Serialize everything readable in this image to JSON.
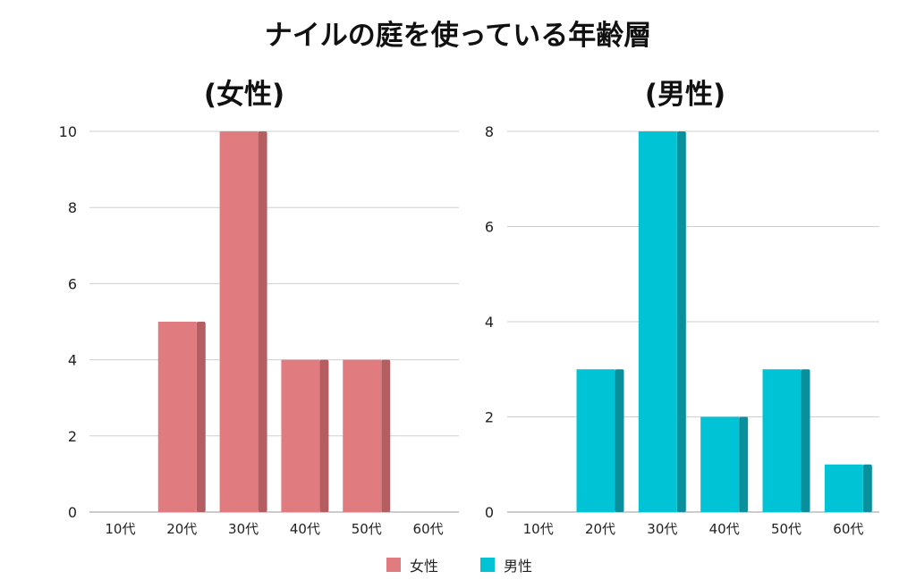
{
  "title": "ナイルの庭を使っている年齢層",
  "legend": {
    "placement": "bottom-center",
    "items": [
      {
        "label": "女性",
        "color": "#e07c80"
      },
      {
        "label": "男性",
        "color": "#00c4d6"
      }
    ]
  },
  "chart_data": [
    {
      "type": "bar",
      "title": "(女性)",
      "categories": [
        "10代",
        "20代",
        "30代",
        "40代",
        "50代",
        "60代"
      ],
      "series": [
        {
          "name": "女性",
          "values": [
            0,
            5,
            10,
            4,
            4,
            0
          ],
          "color": "#e07c80",
          "side_color": "#b45e62"
        }
      ],
      "ylim": [
        0,
        10
      ],
      "yticks": [
        0,
        2,
        4,
        6,
        8,
        10
      ],
      "grid": true
    },
    {
      "type": "bar",
      "title": "(男性)",
      "categories": [
        "10代",
        "20代",
        "30代",
        "40代",
        "50代",
        "60代"
      ],
      "series": [
        {
          "name": "男性",
          "values": [
            0,
            3,
            8,
            2,
            3,
            1
          ],
          "color": "#00c4d6",
          "side_color": "#0a8f9c"
        }
      ],
      "ylim": [
        0,
        8
      ],
      "yticks": [
        0,
        2,
        4,
        6,
        8
      ],
      "grid": true
    }
  ]
}
